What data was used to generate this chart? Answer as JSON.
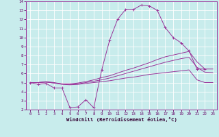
{
  "xlabel": "Windchill (Refroidissement éolien,°C)",
  "xlim": [
    -0.5,
    23.5
  ],
  "ylim": [
    2,
    14
  ],
  "yticks": [
    2,
    3,
    4,
    5,
    6,
    7,
    8,
    9,
    10,
    11,
    12,
    13,
    14
  ],
  "xticks": [
    0,
    1,
    2,
    3,
    4,
    5,
    6,
    7,
    8,
    9,
    10,
    11,
    12,
    13,
    14,
    15,
    16,
    17,
    18,
    19,
    20,
    21,
    22,
    23
  ],
  "bg_color": "#c8ecec",
  "grid_color": "#ffffff",
  "line_color": "#993399",
  "line1_x": [
    0,
    1,
    2,
    3,
    4,
    5,
    6,
    7,
    8,
    9,
    10,
    11,
    12,
    13,
    14,
    15,
    16,
    17,
    18,
    19,
    20,
    21,
    22
  ],
  "line1_y": [
    5.0,
    4.8,
    4.9,
    4.4,
    4.4,
    2.2,
    2.3,
    3.1,
    2.2,
    6.4,
    9.7,
    12.0,
    13.1,
    13.1,
    13.6,
    13.5,
    13.0,
    11.1,
    10.0,
    9.4,
    8.5,
    6.5,
    6.5
  ],
  "line2_x": [
    0,
    1,
    2,
    3,
    4,
    5,
    6,
    7,
    8,
    9,
    10,
    11,
    12,
    13,
    14,
    15,
    16,
    17,
    18,
    19,
    20,
    21,
    22,
    23
  ],
  "line2_y": [
    5.0,
    5.0,
    5.1,
    5.0,
    4.85,
    4.85,
    4.95,
    5.1,
    5.3,
    5.55,
    5.75,
    6.05,
    6.35,
    6.6,
    6.9,
    7.2,
    7.55,
    7.85,
    8.05,
    8.25,
    8.45,
    7.3,
    6.5,
    6.5
  ],
  "line3_x": [
    0,
    1,
    2,
    3,
    4,
    5,
    6,
    7,
    8,
    9,
    10,
    11,
    12,
    13,
    14,
    15,
    16,
    17,
    18,
    19,
    20,
    21,
    22,
    23
  ],
  "line3_y": [
    5.0,
    5.0,
    5.05,
    4.95,
    4.85,
    4.8,
    4.85,
    5.0,
    5.15,
    5.3,
    5.5,
    5.75,
    6.0,
    6.25,
    6.5,
    6.75,
    7.0,
    7.25,
    7.45,
    7.65,
    7.8,
    6.7,
    6.15,
    6.1
  ],
  "line4_x": [
    0,
    1,
    2,
    3,
    4,
    5,
    6,
    7,
    8,
    9,
    10,
    11,
    12,
    13,
    14,
    15,
    16,
    17,
    18,
    19,
    20,
    21,
    22,
    23
  ],
  "line4_y": [
    5.0,
    5.0,
    5.05,
    4.95,
    4.8,
    4.75,
    4.8,
    4.9,
    5.0,
    5.1,
    5.2,
    5.35,
    5.5,
    5.6,
    5.75,
    5.9,
    6.0,
    6.1,
    6.2,
    6.3,
    6.4,
    5.3,
    5.0,
    5.0
  ],
  "tick_color": "#660066",
  "label_color": "#330033",
  "spine_color": "#993399"
}
